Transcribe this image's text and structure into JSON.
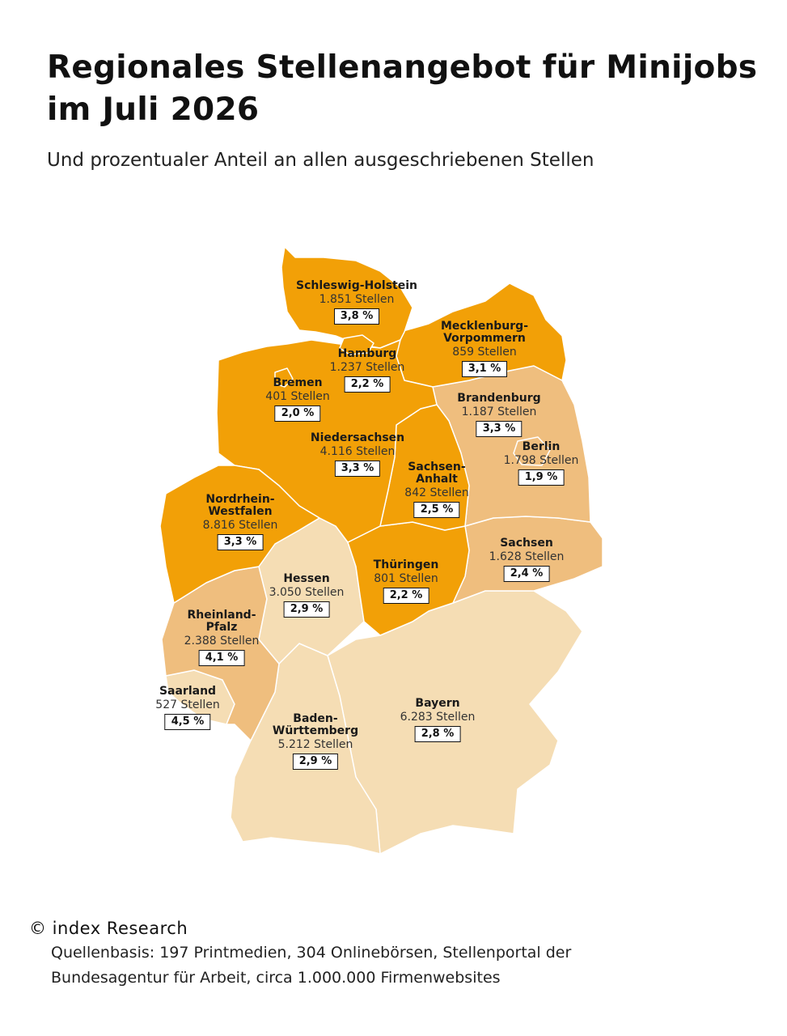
{
  "header": {
    "title": "Regionales Stellenangebot für Minijobs im Juli 2026",
    "subtitle": "Und prozentualer Anteil an allen ausgeschriebenen Stellen"
  },
  "colors": {
    "high": "#F2A007",
    "medium": "#EFBE7E",
    "low": "#F5DDB4",
    "border": "#ffffff"
  },
  "states": {
    "schleswig_holstein": {
      "name": "Schleswig-Holstein",
      "count": "1.851 Stellen",
      "pct": "3,8 %",
      "share": 3.8,
      "tier": "high"
    },
    "mecklenburg_vorpommern": {
      "name": "Mecklenburg-\nVorpommern",
      "count": "859 Stellen",
      "pct": "3,1 %",
      "share": 3.1,
      "tier": "high"
    },
    "hamburg": {
      "name": "Hamburg",
      "count": "1.237 Stellen",
      "pct": "2,2 %",
      "share": 2.2,
      "tier": "high"
    },
    "bremen": {
      "name": "Bremen",
      "count": "401 Stellen",
      "pct": "2,0 %",
      "share": 2.0,
      "tier": "high"
    },
    "brandenburg": {
      "name": "Brandenburg",
      "count": "1.187 Stellen",
      "pct": "3,3 %",
      "share": 3.3,
      "tier": "medium"
    },
    "berlin": {
      "name": "Berlin",
      "count": "1.798 Stellen",
      "pct": "1,9 %",
      "share": 1.9,
      "tier": "medium"
    },
    "niedersachsen": {
      "name": "Niedersachsen",
      "count": "4.116 Stellen",
      "pct": "3,3 %",
      "share": 3.3,
      "tier": "high"
    },
    "sachsen_anhalt": {
      "name": "Sachsen-\nAnhalt",
      "count": "842 Stellen",
      "pct": "2,5 %",
      "share": 2.5,
      "tier": "high"
    },
    "nordrhein_westfalen": {
      "name": "Nordrhein-\nWestfalen",
      "count": "8.816 Stellen",
      "pct": "3,3 %",
      "share": 3.3,
      "tier": "high"
    },
    "sachsen": {
      "name": "Sachsen",
      "count": "1.628 Stellen",
      "pct": "2,4 %",
      "share": 2.4,
      "tier": "medium"
    },
    "hessen": {
      "name": "Hessen",
      "count": "3.050 Stellen",
      "pct": "2,9 %",
      "share": 2.9,
      "tier": "low"
    },
    "thueringen": {
      "name": "Thüringen",
      "count": "801 Stellen",
      "pct": "2,2 %",
      "share": 2.2,
      "tier": "high"
    },
    "rheinland_pfalz": {
      "name": "Rheinland-\nPfalz",
      "count": "2.388 Stellen",
      "pct": "4,1 %",
      "share": 4.1,
      "tier": "medium"
    },
    "saarland": {
      "name": "Saarland",
      "count": "527 Stellen",
      "pct": "4,5 %",
      "share": 4.5,
      "tier": "low"
    },
    "bayern": {
      "name": "Bayern",
      "count": "6.283 Stellen",
      "pct": "2,8 %",
      "share": 2.8,
      "tier": "low"
    },
    "baden_wuerttemberg": {
      "name": "Baden-\nWürttemberg",
      "count": "5.212 Stellen",
      "pct": "2,9 %",
      "share": 2.9,
      "tier": "low"
    }
  },
  "footer": {
    "copyright": "© index Research",
    "source": "Quellenbasis: 197 Printmedien, 304 Onlinebörsen, Stellenportal der Bundesagentur für Arbeit, circa 1.000.000 Firmenwebsites"
  }
}
